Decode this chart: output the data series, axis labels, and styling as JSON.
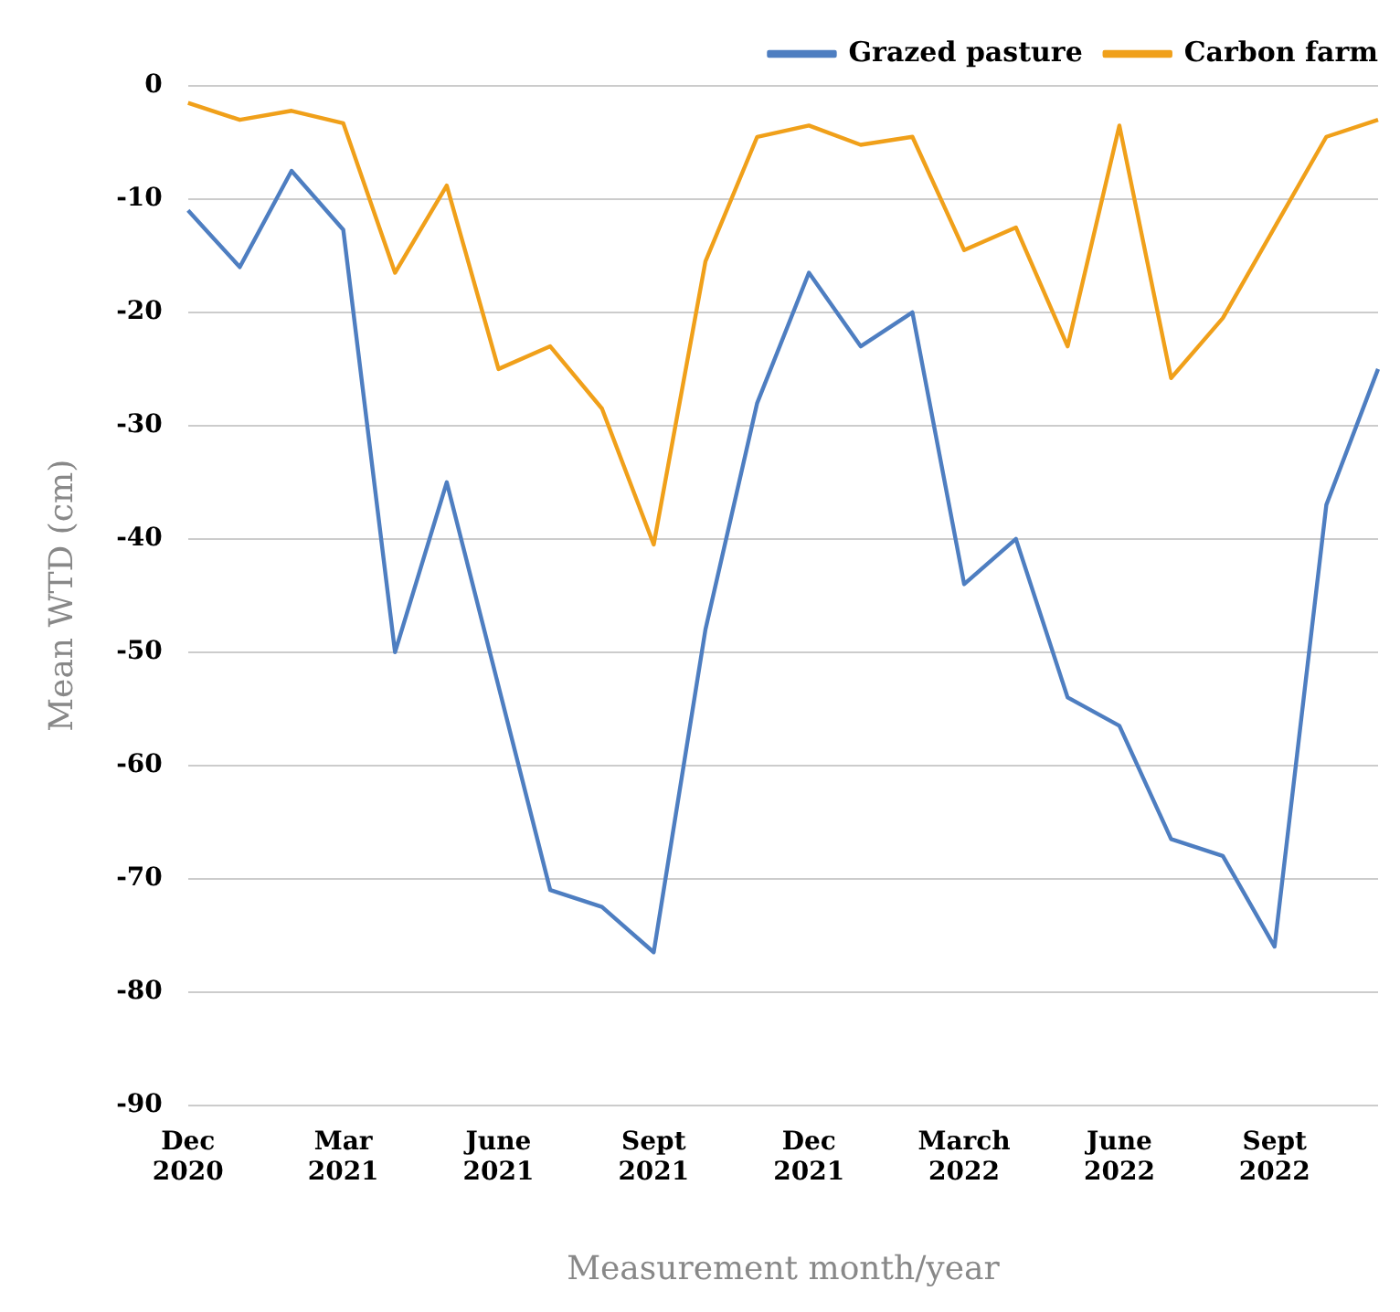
{
  "chart_data": {
    "type": "line",
    "xlabel": "Measurement month/year",
    "ylabel": "Mean WTD (cm)",
    "categories": [
      "Dec 2020",
      null,
      null,
      "Mar 2021",
      null,
      null,
      "June 2021",
      null,
      null,
      "Sept 2021",
      null,
      null,
      "Dec 2021",
      null,
      null,
      "March 2022",
      null,
      null,
      "June 2022",
      null,
      null,
      "Sept 2022",
      null,
      null
    ],
    "series": [
      {
        "name": "Grazed pasture",
        "color": "#4e7ec1",
        "values": [
          -11,
          -16,
          -7.5,
          -12.7,
          -50,
          -35,
          -53,
          -71,
          -72.5,
          -76.5,
          -48,
          -28,
          -16.5,
          -23,
          -20,
          -44,
          -40,
          -54,
          -56.5,
          -66.5,
          -68,
          -76,
          -37,
          -25
        ]
      },
      {
        "name": "Carbon farm",
        "color": "#f0a01a",
        "values": [
          -1.5,
          -3,
          -2.2,
          -3.3,
          -16.5,
          -8.8,
          -25,
          -23,
          -28.5,
          -40.5,
          -15.5,
          -4.5,
          -3.5,
          -5.2,
          -4.5,
          -14.5,
          -12.5,
          -23,
          -3.5,
          -25.8,
          -20.5,
          -12.5,
          -4.5,
          -3
        ]
      }
    ],
    "ylim": [
      -90,
      0
    ],
    "yticks": [
      0,
      -10,
      -20,
      -30,
      -40,
      -50,
      -60,
      -70,
      -80,
      -90
    ],
    "grid": "y",
    "legend": "top right",
    "marker": "none",
    "line_style": "solid"
  }
}
